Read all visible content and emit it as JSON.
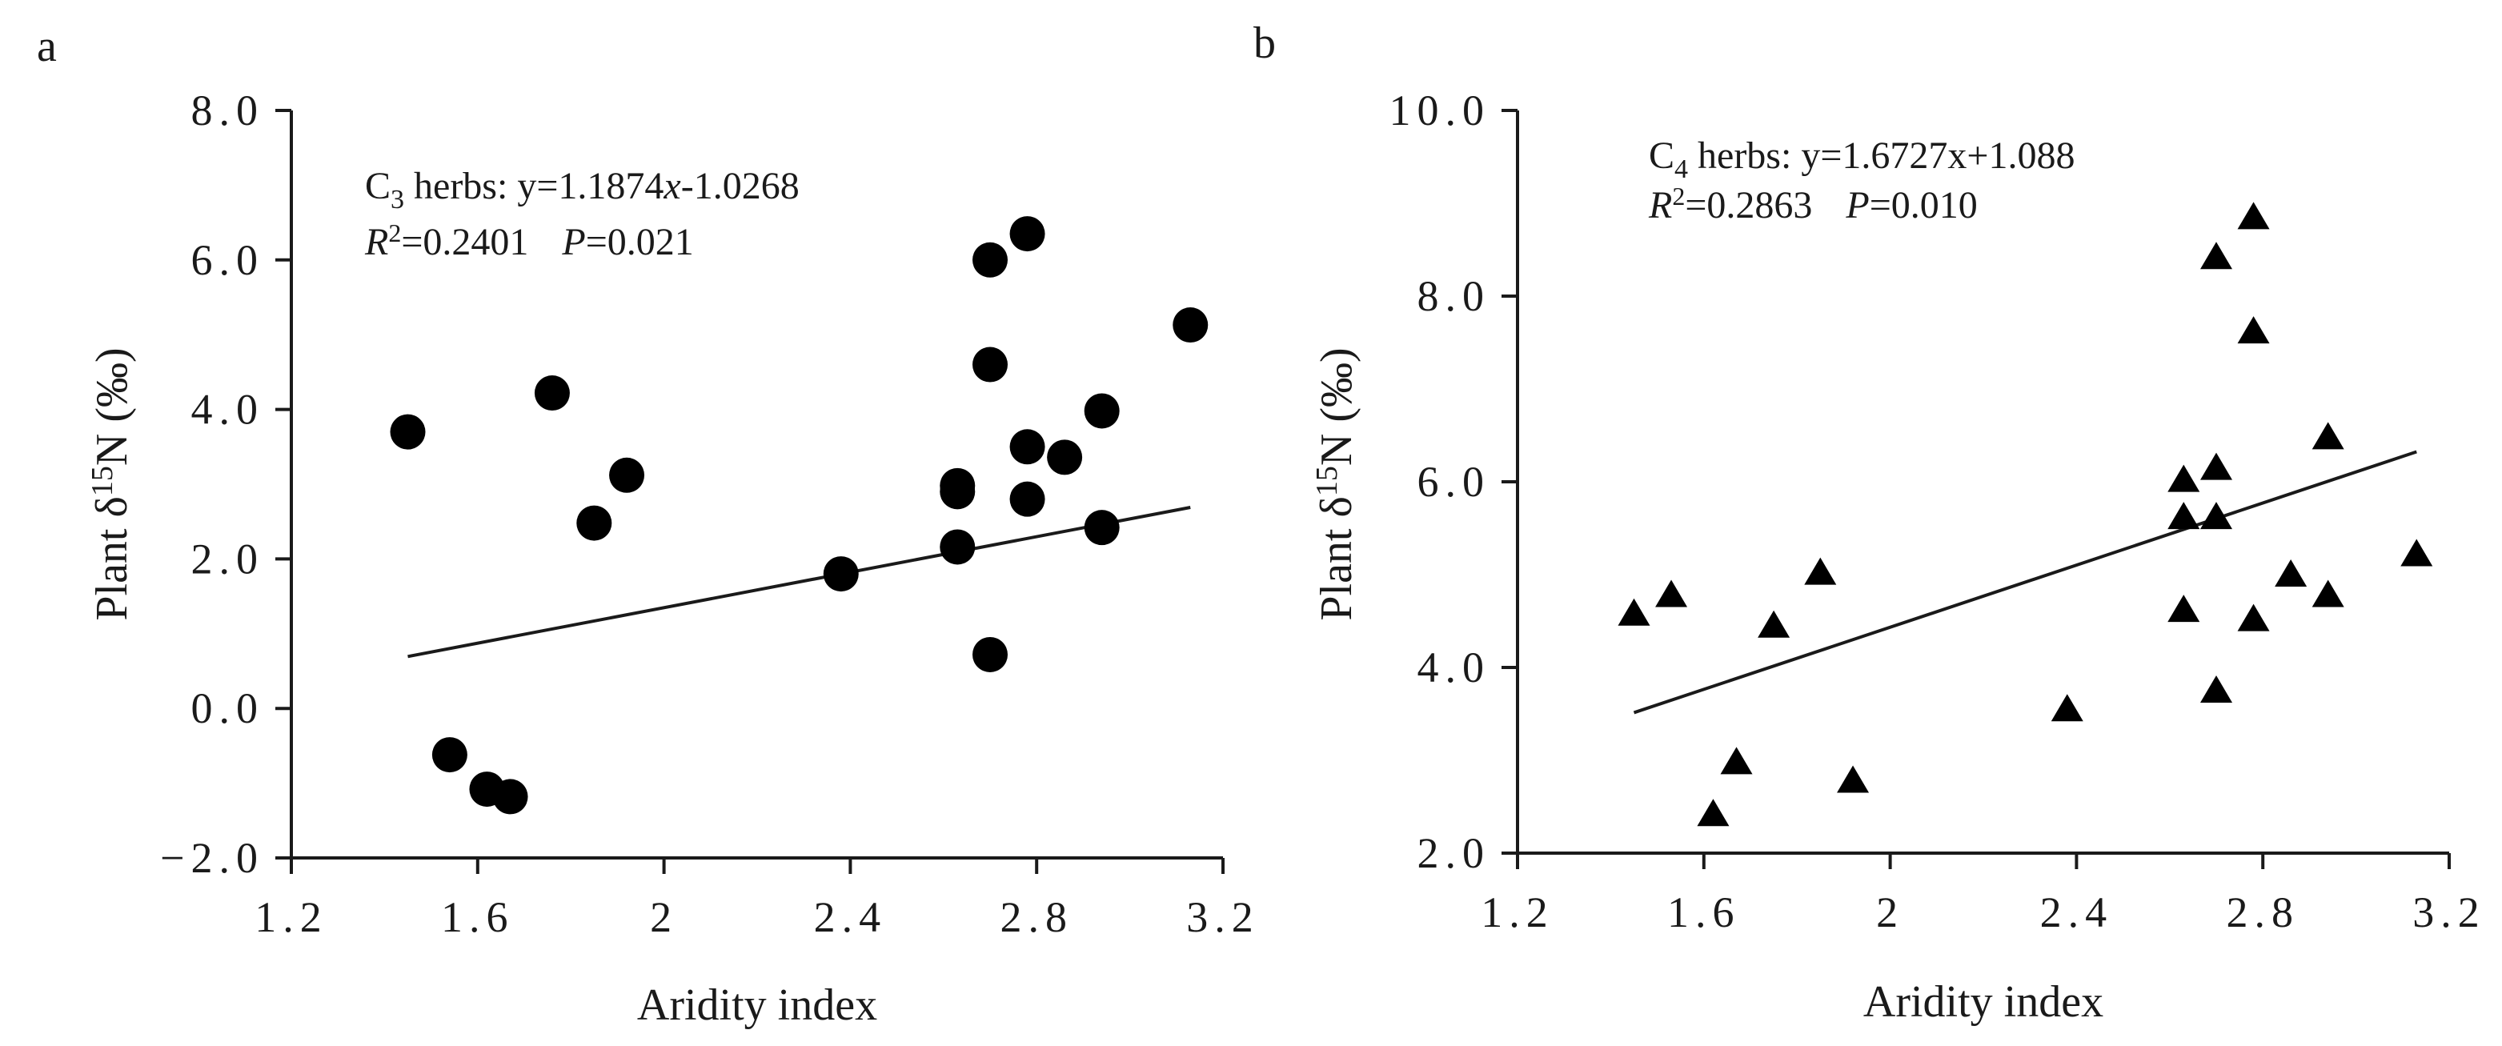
{
  "chart_data": [
    {
      "panel": "a",
      "type": "scatter",
      "marker": "circle",
      "xlabel": "Aridity index",
      "ylabel": "Plant δ15N (‰)",
      "ylabel_parts": {
        "prefix": "Plant δ",
        "sup": "15",
        "suffix": "N (‰)"
      },
      "xlim": [
        1.2,
        3.2
      ],
      "ylim": [
        -2.0,
        8.0
      ],
      "xticks": [
        1.2,
        1.6,
        2,
        2.4,
        2.8,
        3.2
      ],
      "xtick_labels": [
        "1.2",
        "1.6",
        "2",
        "2.4",
        "2.8",
        "3.2"
      ],
      "yticks": [
        -2.0,
        0.0,
        2.0,
        4.0,
        6.0,
        8.0
      ],
      "ytick_labels": [
        "−2.0",
        "0.0",
        "2.0",
        "4.0",
        "6.0",
        "8.0"
      ],
      "annotation": {
        "line1": {
          "lead": "C",
          "sub": "3",
          "rest": " herbs: y=1.1874",
          "italic": "x",
          "tail": "-1.0268"
        },
        "line2": {
          "r": "R",
          "sup": "2",
          "r_value": "=0.2401",
          "p": "P",
          "p_value": "=0.021"
        }
      },
      "fit": {
        "slope": 1.1874,
        "intercept": -1.0268,
        "x_range": [
          1.45,
          3.13
        ]
      },
      "points": [
        {
          "x": 1.45,
          "y": 3.7
        },
        {
          "x": 1.54,
          "y": -0.62
        },
        {
          "x": 1.62,
          "y": -1.08
        },
        {
          "x": 1.67,
          "y": -1.18
        },
        {
          "x": 1.76,
          "y": 4.22
        },
        {
          "x": 1.85,
          "y": 2.48
        },
        {
          "x": 1.92,
          "y": 3.12
        },
        {
          "x": 2.38,
          "y": 1.8
        },
        {
          "x": 2.63,
          "y": 2.98
        },
        {
          "x": 2.63,
          "y": 2.9
        },
        {
          "x": 2.63,
          "y": 2.16
        },
        {
          "x": 2.7,
          "y": 6.0
        },
        {
          "x": 2.7,
          "y": 4.6
        },
        {
          "x": 2.7,
          "y": 0.72
        },
        {
          "x": 2.78,
          "y": 6.35
        },
        {
          "x": 2.78,
          "y": 3.5
        },
        {
          "x": 2.78,
          "y": 2.8
        },
        {
          "x": 2.86,
          "y": 3.36
        },
        {
          "x": 2.94,
          "y": 3.98
        },
        {
          "x": 2.94,
          "y": 2.42
        },
        {
          "x": 3.13,
          "y": 5.13
        }
      ]
    },
    {
      "panel": "b",
      "type": "scatter",
      "marker": "triangle",
      "xlabel": "Aridity index",
      "ylabel": "Plant δ15N (‰)",
      "ylabel_parts": {
        "prefix": "Plant δ",
        "sup": "15",
        "suffix": "N (‰)"
      },
      "xlim": [
        1.2,
        3.2
      ],
      "ylim": [
        2.0,
        10.0
      ],
      "xticks": [
        1.2,
        1.6,
        2,
        2.4,
        2.8,
        3.2
      ],
      "xtick_labels": [
        "1.2",
        "1.6",
        "2",
        "2.4",
        "2.8",
        "3.2"
      ],
      "yticks": [
        2.0,
        4.0,
        6.0,
        8.0,
        10.0
      ],
      "ytick_labels": [
        "2.0",
        "4.0",
        "6.0",
        "8.0",
        "10.0"
      ],
      "annotation": {
        "line1": {
          "lead": "C",
          "sub": "4",
          "rest": " herbs: y=1.6727x+1.088",
          "italic": "",
          "tail": ""
        },
        "line2": {
          "r": "R",
          "sup": "2",
          "r_value": "=0.2863",
          "p": "P",
          "p_value": "=0.010"
        }
      },
      "fit": {
        "slope": 1.6727,
        "intercept": 1.088,
        "x_range": [
          1.45,
          3.13
        ]
      },
      "points": [
        {
          "x": 1.45,
          "y": 4.58
        },
        {
          "x": 1.53,
          "y": 4.78
        },
        {
          "x": 1.62,
          "y": 2.42
        },
        {
          "x": 1.67,
          "y": 2.98
        },
        {
          "x": 1.75,
          "y": 4.45
        },
        {
          "x": 1.85,
          "y": 5.02
        },
        {
          "x": 1.92,
          "y": 2.78
        },
        {
          "x": 2.38,
          "y": 3.55
        },
        {
          "x": 2.63,
          "y": 6.02
        },
        {
          "x": 2.63,
          "y": 5.62
        },
        {
          "x": 2.63,
          "y": 4.62
        },
        {
          "x": 2.7,
          "y": 8.42
        },
        {
          "x": 2.7,
          "y": 6.15
        },
        {
          "x": 2.7,
          "y": 5.62
        },
        {
          "x": 2.7,
          "y": 3.75
        },
        {
          "x": 2.78,
          "y": 8.85
        },
        {
          "x": 2.78,
          "y": 7.62
        },
        {
          "x": 2.78,
          "y": 4.52
        },
        {
          "x": 2.86,
          "y": 5.0
        },
        {
          "x": 2.94,
          "y": 6.48
        },
        {
          "x": 2.94,
          "y": 4.78
        },
        {
          "x": 3.13,
          "y": 5.22
        }
      ]
    }
  ]
}
